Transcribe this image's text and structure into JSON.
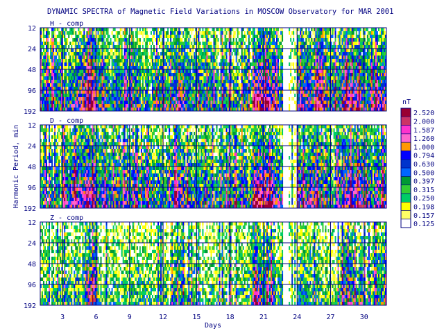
{
  "chart_data": {
    "type": "heatmap",
    "title": "DYNAMIC SPECTRA of Magnetic Field Variations in MOSCOW Observatory for MAR 2001",
    "xlabel": "Days",
    "ylabel": "Harmonic Period, min",
    "x_range": [
      1,
      32
    ],
    "x_ticks": [
      3,
      6,
      9,
      12,
      15,
      18,
      21,
      24,
      27,
      30
    ],
    "x_tick_labels": [
      "3",
      "6",
      "9",
      "12",
      "15",
      "18",
      "21",
      "24",
      "27",
      "30"
    ],
    "y_scale": "log",
    "y_range": [
      12,
      192
    ],
    "y_ticks": [
      12,
      24,
      48,
      96,
      192
    ],
    "y_tick_labels": [
      "12",
      "24",
      "48",
      "96",
      "192"
    ],
    "data_gap_days": [
      22.8,
      23.2
    ],
    "panels": [
      {
        "label": "H - comp",
        "component": "H",
        "activity": [
          0.55,
          0.6,
          0.65,
          0.75,
          1.05,
          0.7,
          0.55,
          0.6,
          0.6,
          0.55,
          0.6,
          0.6,
          0.75,
          0.6,
          0.55,
          0.6,
          0.6,
          0.55,
          0.6,
          1.05,
          1.0,
          0.7,
          0.0,
          0.8,
          0.85,
          0.6,
          0.65,
          0.95,
          0.85,
          0.75,
          0.9,
          1.35
        ]
      },
      {
        "label": "D - comp",
        "component": "D",
        "activity": [
          0.5,
          0.55,
          0.7,
          0.8,
          1.0,
          0.7,
          0.6,
          0.55,
          0.6,
          0.6,
          0.55,
          0.55,
          0.85,
          0.65,
          0.55,
          0.6,
          0.55,
          0.55,
          0.6,
          1.05,
          1.05,
          0.75,
          0.0,
          0.8,
          0.85,
          0.6,
          0.6,
          0.95,
          0.85,
          0.7,
          0.85,
          1.3
        ]
      },
      {
        "label": "Z - comp",
        "component": "Z",
        "activity": [
          0.3,
          0.35,
          0.35,
          0.45,
          0.85,
          0.35,
          0.3,
          0.3,
          0.35,
          0.3,
          0.3,
          0.35,
          0.5,
          0.35,
          0.3,
          0.3,
          0.3,
          0.3,
          0.35,
          0.85,
          0.75,
          0.45,
          0.0,
          0.45,
          0.4,
          0.3,
          0.35,
          0.7,
          0.6,
          0.4,
          0.55,
          1.05
        ]
      }
    ],
    "colorbar": {
      "unit": "nT",
      "levels": [
        0.125,
        0.157,
        0.198,
        0.25,
        0.315,
        0.397,
        0.5,
        0.63,
        0.794,
        1.0,
        1.26,
        1.587,
        2.0,
        2.52
      ],
      "labels": [
        "0.125",
        "0.157",
        "0.198",
        "0.250",
        "0.315",
        "0.397",
        "0.500",
        "0.630",
        "0.794",
        "1.000",
        "1.260",
        "1.587",
        "2.000",
        "2.520"
      ],
      "colors": [
        "#ffffff",
        "#ffff66",
        "#ffff00",
        "#00cc66",
        "#33cc33",
        "#009933",
        "#0066ff",
        "#0033cc",
        "#0000ff",
        "#ff9900",
        "#ff66cc",
        "#ff33cc",
        "#cc3366",
        "#990033"
      ]
    }
  }
}
